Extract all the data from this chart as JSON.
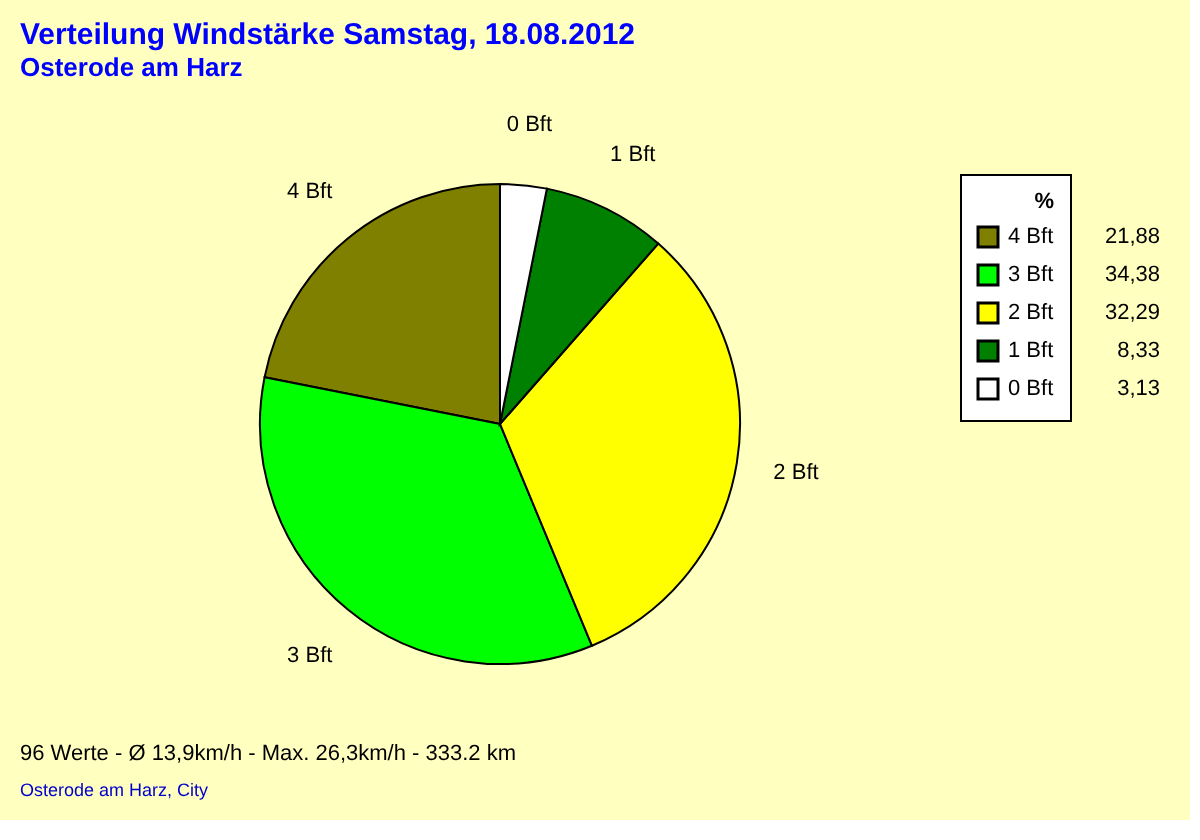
{
  "chart_data": {
    "type": "pie",
    "title": "Verteilung Windstärke  Samstag, 18.08.2012",
    "subtitle": "Osterode am Harz",
    "categories": [
      "4 Bft",
      "3 Bft",
      "2 Bft",
      "1 Bft",
      "0 Bft"
    ],
    "values": [
      21.88,
      34.38,
      32.29,
      8.33,
      3.13
    ],
    "value_labels": [
      "21,88",
      "34,38",
      "32,29",
      "8,33",
      "3,13"
    ],
    "colors": [
      "#808000",
      "#00ff00",
      "#ffff00",
      "#008000",
      "#ffffff"
    ],
    "legend_title": "%",
    "legend": "top right",
    "annotations": [
      "96 Werte   -   Ø 13,9km/h  -  Max. 26,3km/h  -    333.2 km",
      "Osterode am Harz, City"
    ]
  }
}
